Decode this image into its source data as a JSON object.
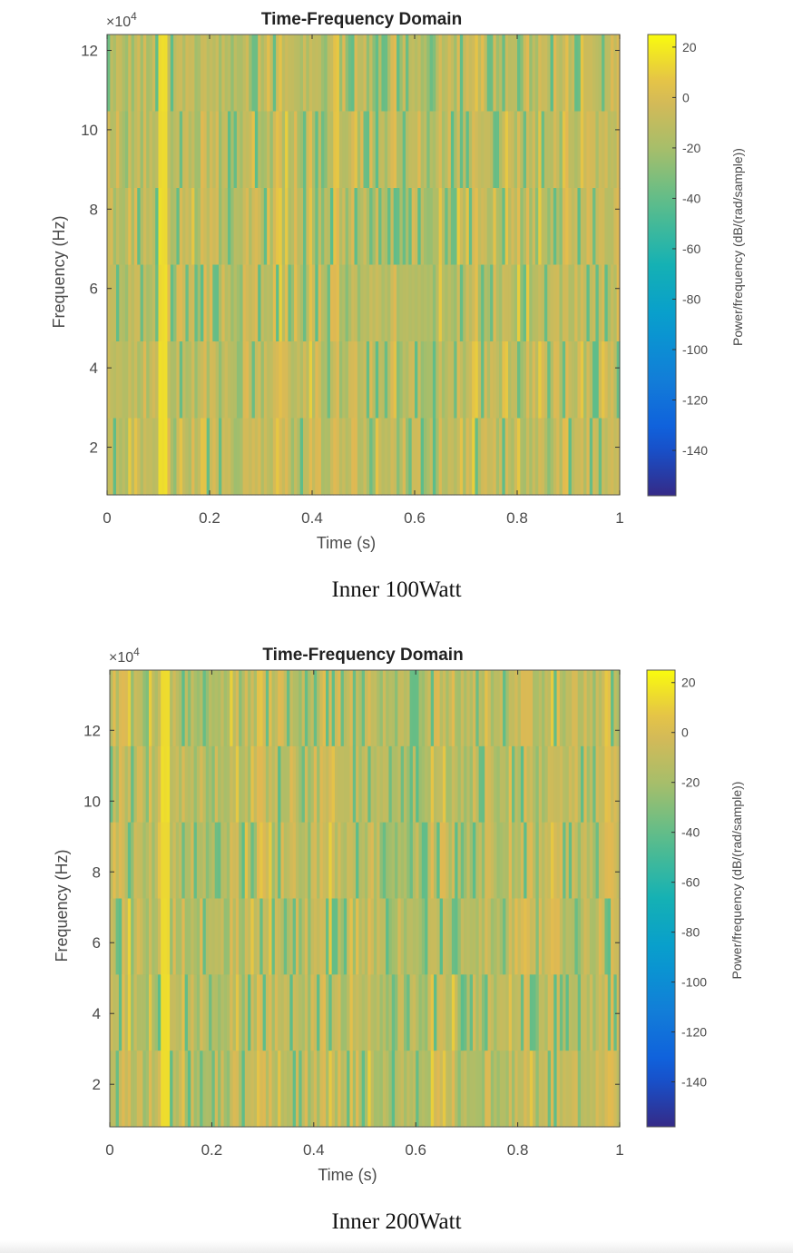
{
  "chart_data": [
    {
      "type": "heatmap",
      "title": "Time-Frequency Domain",
      "xlabel": "Time (s)",
      "ylabel": "Frequency (Hz)",
      "y_exponent": "×10",
      "y_exponent_power": "4",
      "xlim": [
        0,
        1
      ],
      "ylim": [
        0.8,
        12.4
      ],
      "xticks": [
        0,
        0.2,
        0.4,
        0.6,
        0.8,
        1
      ],
      "yticks": [
        2,
        4,
        6,
        8,
        10,
        12
      ],
      "colorbar": {
        "label": "Power/frequency (dB/(rad/sample))",
        "range": [
          -158,
          25
        ],
        "ticks": [
          20,
          0,
          -20,
          -40,
          -60,
          -80,
          -100,
          -120,
          -140
        ],
        "colormap": "parula"
      },
      "value_range_shown_db": [
        -40,
        10
      ],
      "bright_line_time_s": 0.105,
      "caption": "Inner 100Watt"
    },
    {
      "type": "heatmap",
      "title": "Time-Frequency Domain",
      "xlabel": "Time (s)",
      "ylabel": "Frequency (Hz)",
      "y_exponent": "×10",
      "y_exponent_power": "4",
      "xlim": [
        0,
        1
      ],
      "ylim": [
        0.8,
        13.7
      ],
      "xticks": [
        0,
        0.2,
        0.4,
        0.6,
        0.8,
        1
      ],
      "yticks": [
        2,
        4,
        6,
        8,
        10,
        12
      ],
      "colorbar": {
        "label": "Power/frequency (dB/(rad/sample))",
        "range": [
          -158,
          25
        ],
        "ticks": [
          20,
          0,
          -20,
          -40,
          -60,
          -80,
          -100,
          -120,
          -140
        ],
        "colormap": "parula"
      },
      "value_range_shown_db": [
        -40,
        10
      ],
      "bright_line_time_s": 0.105,
      "caption": "Inner 200Watt"
    }
  ]
}
